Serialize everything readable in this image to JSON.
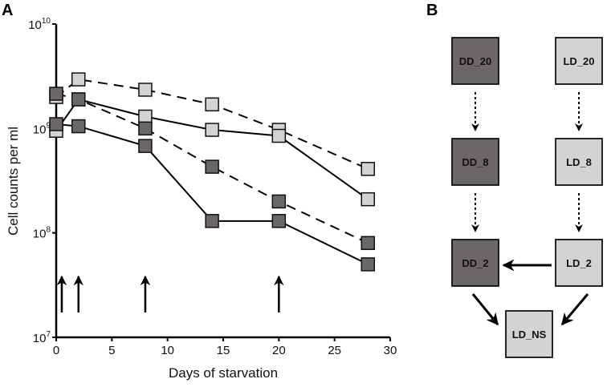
{
  "panels": {
    "a": "A",
    "b": "B"
  },
  "chart_data": {
    "type": "line",
    "xlabel": "Days of starvation",
    "ylabel": "Cell counts per ml",
    "xlim": [
      0,
      30
    ],
    "ylim": [
      10000000.0,
      10000000000.0
    ],
    "yscale": "log",
    "xticks": [
      0,
      5,
      10,
      15,
      20,
      25,
      30
    ],
    "yticks": [
      {
        "base": "10",
        "exp": "7",
        "value": 10000000.0
      },
      {
        "base": "10",
        "exp": "8",
        "value": 100000000.0
      },
      {
        "base": "10",
        "exp": "9",
        "value": 1000000000.0
      },
      {
        "base": "10",
        "exp": "10",
        "value": 10000000000.0
      }
    ],
    "grid": false,
    "colors": {
      "dark": "#6b6767",
      "light": "#d3d3d3"
    },
    "series": [
      {
        "name": "light-dashed",
        "shade": "light",
        "style": "dashed",
        "x": [
          0,
          2,
          8,
          14,
          20,
          28
        ],
        "y": [
          2000000000.0,
          2950000000.0,
          2350000000.0,
          1700000000.0,
          970000000.0,
          410000000.0
        ]
      },
      {
        "name": "light-solid",
        "shade": "light",
        "style": "solid",
        "x": [
          0,
          2,
          8,
          14,
          20,
          28
        ],
        "y": [
          950000000.0,
          1900000000.0,
          1300000000.0,
          970000000.0,
          850000000.0,
          210000000.0
        ]
      },
      {
        "name": "dark-dashed",
        "shade": "dark",
        "style": "dashed",
        "x": [
          0,
          2,
          8,
          14,
          20,
          28
        ],
        "y": [
          2150000000.0,
          1900000000.0,
          1000000000.0,
          430000000.0,
          200000000.0,
          80000000.0
        ]
      },
      {
        "name": "dark-solid",
        "shade": "dark",
        "style": "solid",
        "x": [
          0,
          2,
          8,
          14,
          20,
          28
        ],
        "y": [
          1100000000.0,
          1050000000.0,
          680000000.0,
          130000000.0,
          130000000.0,
          50000000.0
        ]
      }
    ],
    "annotations": {
      "arrows_at_days": [
        0.5,
        2,
        8,
        20
      ]
    }
  },
  "diagram": {
    "nodes": [
      {
        "id": "DD_20",
        "label": "DD_20",
        "shade": "dark"
      },
      {
        "id": "LD_20",
        "label": "LD_20",
        "shade": "light"
      },
      {
        "id": "DD_8",
        "label": "DD_8",
        "shade": "dark"
      },
      {
        "id": "LD_8",
        "label": "LD_8",
        "shade": "light"
      },
      {
        "id": "DD_2",
        "label": "DD_2",
        "shade": "dark"
      },
      {
        "id": "LD_2",
        "label": "LD_2",
        "shade": "light"
      },
      {
        "id": "LD_NS",
        "label": "LD_NS",
        "shade": "light"
      }
    ],
    "edges": [
      {
        "from": "DD_20",
        "to": "DD_8",
        "style": "dotted"
      },
      {
        "from": "LD_20",
        "to": "LD_8",
        "style": "dotted"
      },
      {
        "from": "DD_8",
        "to": "DD_2",
        "style": "dotted"
      },
      {
        "from": "LD_8",
        "to": "LD_2",
        "style": "dotted"
      },
      {
        "from": "LD_2",
        "to": "DD_2",
        "style": "solid"
      },
      {
        "from": "DD_2",
        "to": "LD_NS",
        "style": "solid"
      },
      {
        "from": "LD_2",
        "to": "LD_NS",
        "style": "solid"
      }
    ]
  }
}
